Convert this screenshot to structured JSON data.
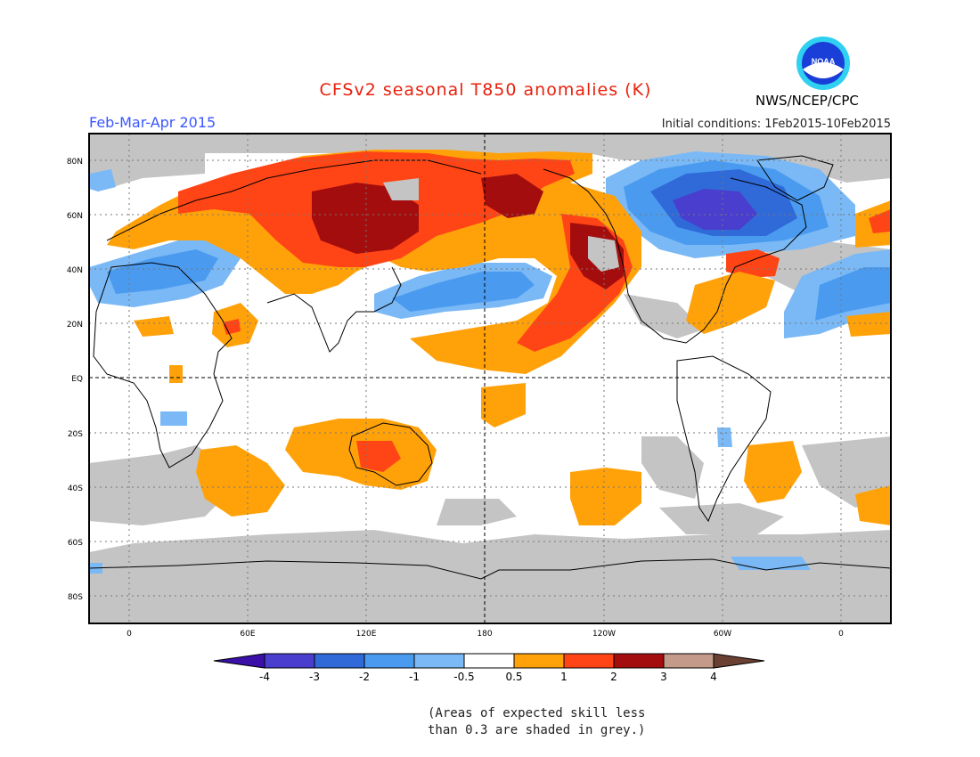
{
  "title": "CFSv2 seasonal T850 anomalies (K)",
  "season": "Feb-Mar-Apr 2015",
  "initial_conditions": "Initial conditions: 1Feb2015-10Feb2015",
  "agency": "NWS/NCEP/CPC",
  "logo_text": "NOAA",
  "note_line1": "(Areas of expected skill less",
  "note_line2": "than 0.3 are shaded in grey.)",
  "lat_labels": [
    "80N",
    "60N",
    "40N",
    "20N",
    "EQ",
    "20S",
    "40S",
    "60S",
    "80S"
  ],
  "lon_labels": [
    "0",
    "60E",
    "120E",
    "180",
    "120W",
    "60W",
    "0"
  ],
  "colorbar": {
    "tick_labels": [
      "-4",
      "-3",
      "-2",
      "-1",
      "-0.5",
      "0.5",
      "1",
      "2",
      "3",
      "4"
    ],
    "colors": [
      "#3a10a8",
      "#4a3ecf",
      "#2f6ad8",
      "#4a9bf0",
      "#7ab9f5",
      "#ffffff",
      "#ffa20a",
      "#ff4516",
      "#a40d0d",
      "#c49a8a",
      "#6a4032"
    ]
  },
  "colors": {
    "skill_grey": "#c4c4c4",
    "title_red": "#e8200c",
    "season_blue": "#3a56ff"
  }
}
